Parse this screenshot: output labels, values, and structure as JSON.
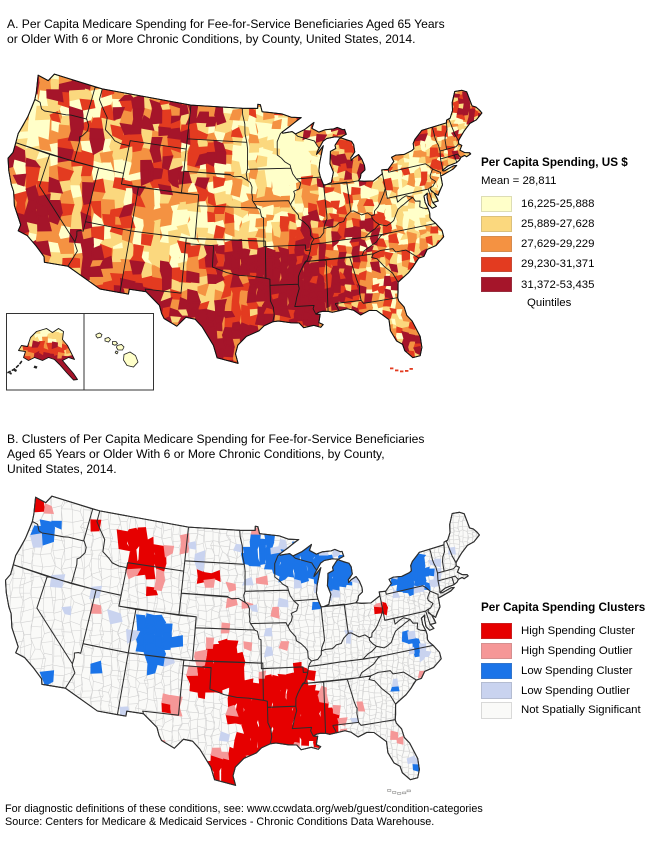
{
  "figure": {
    "panel_a": {
      "title_lines": [
        "A. Per Capita Medicare Spending for Fee-for-Service Beneficiaries Aged 65 Years",
        "or Older With 6 or More Chronic Conditions, by County, United States, 2014."
      ],
      "legend": {
        "title": "Per Capita Spending, US $",
        "subtitle": "Mean = 28,811",
        "items": [
          {
            "label": "16,225-25,888",
            "color": "#FFFFC9"
          },
          {
            "label": "25,889-27,628",
            "color": "#FBD87E"
          },
          {
            "label": "27,629-29,229",
            "color": "#F49242"
          },
          {
            "label": "29,230-31,371",
            "color": "#E33B20"
          },
          {
            "label": "31,372-53,435",
            "color": "#A5152A"
          }
        ],
        "footer": "Quintiles"
      }
    },
    "panel_b": {
      "title_lines": [
        "B. Clusters of Per Capita Medicare Spending for Fee-for-Service Beneficiaries",
        "Aged 65 Years or Older With 6 or More Chronic Conditions, by County,",
        "United States, 2014."
      ],
      "legend": {
        "title": "Per Capita Spending Clusters",
        "items": [
          {
            "label": "High Spending Cluster",
            "color": "#E60000"
          },
          {
            "label": "High Spending Outlier",
            "color": "#F59797"
          },
          {
            "label": "Low Spending Cluster",
            "color": "#1B74E8"
          },
          {
            "label": "Low Spending Outlier",
            "color": "#C9D3EF"
          },
          {
            "label": "Not Spatially Significant",
            "color": "#FAFAF8"
          }
        ]
      }
    },
    "footnotes": [
      "For diagnostic definitions of these conditions, see: www.ccwdata.org/web/guest/condition-categories",
      "Source: Centers for Medicare & Medicaid Services - Chronic Conditions Data Warehouse."
    ]
  }
}
